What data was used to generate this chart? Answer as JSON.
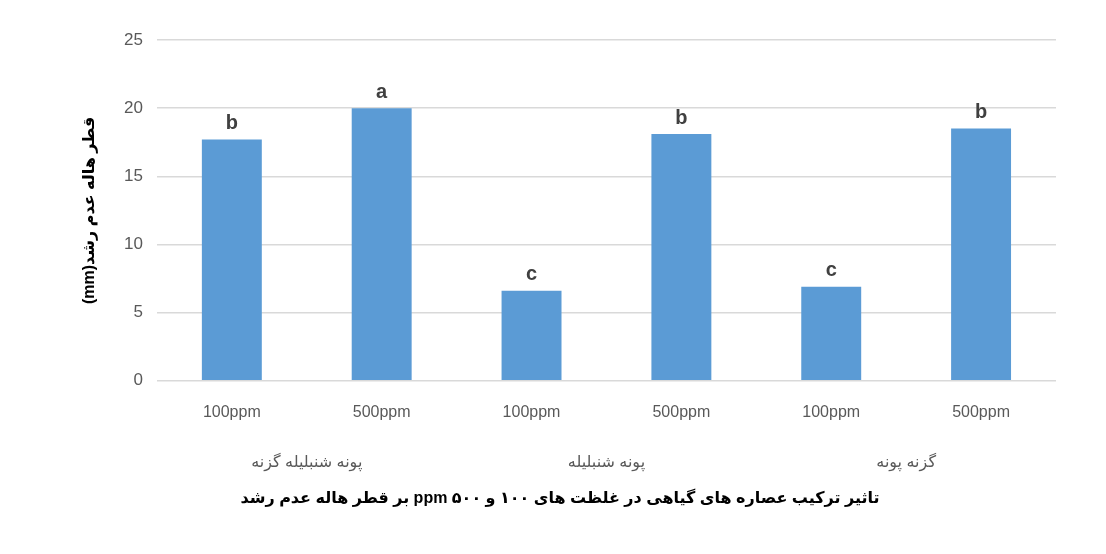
{
  "chart_data": {
    "type": "bar",
    "title": "تاثیر ترکیب عصاره های گیاهی در غلظت های ۱۰۰ و ۵۰۰ ppm بر قطر هاله عدم رشد",
    "ylabel": "قطر هاله عدم رشد(mm)",
    "categories": [
      "100ppm",
      "500ppm",
      "100ppm",
      "500ppm",
      "100ppm",
      "500ppm"
    ],
    "values": [
      17.7,
      20.0,
      6.6,
      18.1,
      6.9,
      18.5
    ],
    "value_labels": [
      "b",
      "a",
      "c",
      "b",
      "c",
      "b"
    ],
    "color": "#5b9bd5",
    "ylim": [
      0,
      25
    ],
    "yticks": [
      0,
      5,
      10,
      15,
      20,
      25
    ],
    "grid": "y",
    "legend": false,
    "annotations": [
      "پونه شنبلیله گزنه",
      "پونه شنبلیله",
      "گزنه پونه"
    ]
  }
}
